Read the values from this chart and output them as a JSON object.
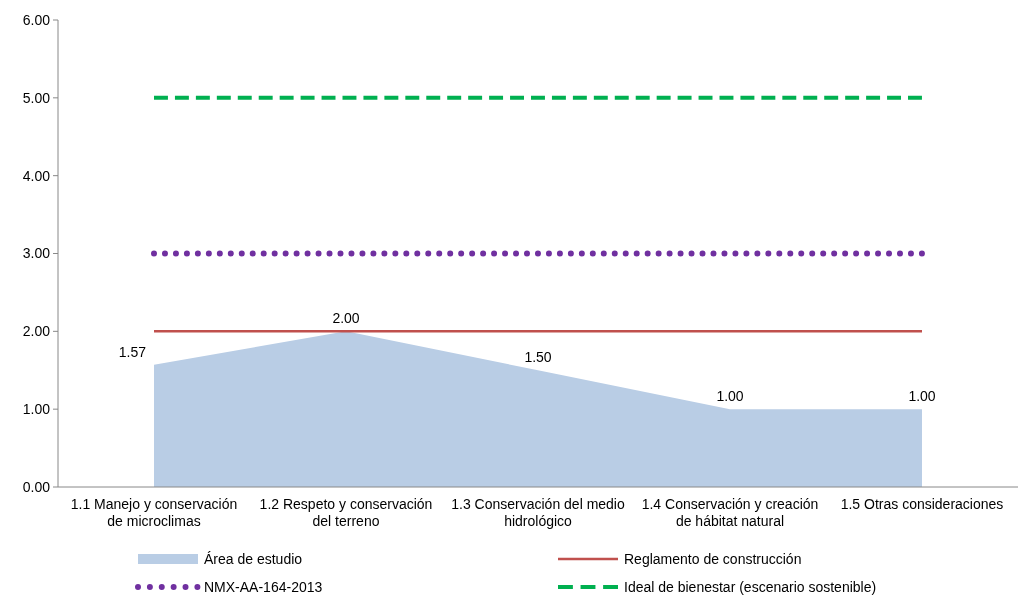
{
  "chart_data": {
    "type": "line",
    "categories": [
      "1.1 Manejo y conservación de microclimas",
      "1.2 Respeto y conservación del terreno",
      "1.3 Conservación del medio hidrológico",
      "1.4 Conservación y creación de hábitat natural",
      "1.5 Otras consideraciones"
    ],
    "series": [
      {
        "name": "Área de estudio",
        "type": "area",
        "color": "#b9cde5",
        "values": [
          1.57,
          2.0,
          1.5,
          1.0,
          1.0
        ],
        "value_labels": [
          "1.57",
          "2.00",
          "1.50",
          "1.00",
          "1.00"
        ]
      },
      {
        "name": "Reglamento de construcción",
        "color": "#c0504d",
        "line_style": "solid",
        "values": [
          2,
          2,
          2,
          2,
          2
        ]
      },
      {
        "name": "NMX-AA-164-2013",
        "type": "line",
        "color": "#7030a0",
        "line_style": "dotted",
        "values": [
          3,
          3,
          3,
          3,
          3
        ]
      },
      {
        "name": "Ideal de bienestar (escenario sostenible)",
        "type": "line",
        "color": "#00b050",
        "line_style": "dashed",
        "values": [
          5,
          5,
          5,
          5,
          5
        ]
      }
    ],
    "ylim": [
      0,
      6
    ],
    "yticks": [
      {
        "value": 0,
        "label": "0.00"
      },
      {
        "value": 1,
        "label": "1.00"
      },
      {
        "value": 2,
        "label": "2.00"
      },
      {
        "value": 3,
        "label": "3.00"
      },
      {
        "value": 4,
        "label": "4.00"
      },
      {
        "value": 5,
        "label": "5.00"
      },
      {
        "value": 6,
        "label": "6.00"
      }
    ],
    "grid": false,
    "legend": "bottom"
  }
}
